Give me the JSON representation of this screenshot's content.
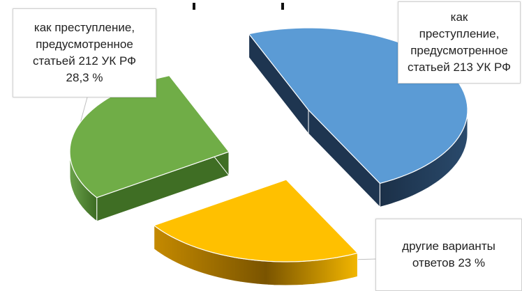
{
  "chart_data": {
    "type": "pie",
    "style": "3d-exploded",
    "slices": [
      {
        "label_lines": [
          "как",
          "преступление,",
          "предусмотренное",
          "статьей 213 УК РФ"
        ],
        "value": 48.7,
        "color": "#5b9bd5",
        "side_color": "#1e3550"
      },
      {
        "label_lines": [
          "другие варианты",
          "ответов 23 %"
        ],
        "value": 23,
        "color": "#ffc000",
        "side_color": "#9a6c00"
      },
      {
        "label_lines": [
          "как преступление,",
          "предусмотренное",
          "статьей 212 УК РФ",
          "28,3 %"
        ],
        "value": 28.3,
        "color": "#70ad47",
        "side_color": "#3f6e24"
      }
    ]
  }
}
